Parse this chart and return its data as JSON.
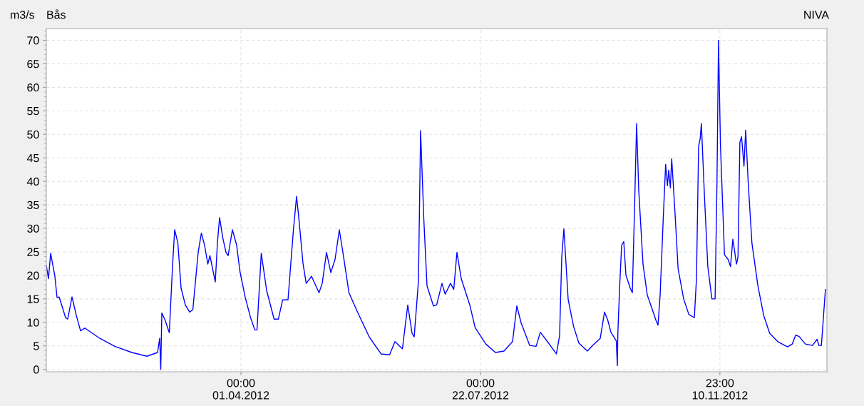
{
  "chart_data": {
    "type": "line",
    "title": "Bås",
    "ylabel": "m3/s",
    "annotations": [
      "NIVA"
    ],
    "x": [
      "2012-01-01",
      "2012-01-02",
      "2012-01-03",
      "2012-01-05",
      "2012-01-06",
      "2012-01-07",
      "2012-01-10",
      "2012-01-11",
      "2012-01-13",
      "2012-01-15",
      "2012-01-17",
      "2012-01-19",
      "2012-01-26",
      "2012-02-02",
      "2012-02-10",
      "2012-02-17",
      "2012-02-22",
      "2012-02-23T00:00",
      "2012-02-23T12:00",
      "2012-02-24T00:00",
      "2012-02-25T12:00",
      "2012-02-27T12:00",
      "2012-02-29",
      "2012-03-01",
      "2012-03-02T12:00",
      "2012-03-04",
      "2012-03-06",
      "2012-03-08",
      "2012-03-09T12:00",
      "2012-03-12",
      "2012-03-13T12:00",
      "2012-03-15",
      "2012-03-16T12:00",
      "2012-03-17T12:00",
      "2012-03-20",
      "2012-03-21",
      "2012-03-22",
      "2012-03-23T12:00",
      "2012-03-25",
      "2012-03-26",
      "2012-03-28",
      "2012-03-30",
      "2012-03-31T12:00",
      "2012-04-03",
      "2012-04-05T12:00",
      "2012-04-07T12:00",
      "2012-04-08T12:00",
      "2012-04-10T12:00",
      "2012-04-13",
      "2012-04-16T12:00",
      "2012-04-18T12:00",
      "2012-04-20T12:00",
      "2012-04-23",
      "2012-04-25T12:00",
      "2012-04-27",
      "2012-04-28",
      "2012-04-30",
      "2012-05-01T12:00",
      "2012-05-04",
      "2012-05-07T12:00",
      "2012-05-09",
      "2012-05-11",
      "2012-05-13",
      "2012-05-15",
      "2012-05-17",
      "2012-05-19",
      "2012-05-21T12:00",
      "2012-05-25T12:00",
      "2012-05-31",
      "2012-06-05T12:00",
      "2012-06-09T12:00",
      "2012-06-12",
      "2012-06-15T12:00",
      "2012-06-18",
      "2012-06-20",
      "2012-06-21",
      "2012-06-23",
      "2012-06-24",
      "2012-06-25T12:00",
      "2012-06-27",
      "2012-06-30",
      "2012-07-01T12:00",
      "2012-07-04",
      "2012-07-05T12:00",
      "2012-07-08",
      "2012-07-09T12:00",
      "2012-07-11",
      "2012-07-13",
      "2012-07-17",
      "2012-07-19T12:00",
      "2012-07-24T12:00",
      "2012-07-29",
      "2012-08-02",
      "2012-08-06",
      "2012-08-08",
      "2012-08-10",
      "2012-08-14",
      "2012-08-17",
      "2012-08-19",
      "2012-08-22",
      "2012-08-26T12:00",
      "2012-08-28",
      "2012-08-29",
      "2012-08-30",
      "2012-09-01",
      "2012-09-03T12:00",
      "2012-09-06",
      "2012-09-10",
      "2012-09-12T12:00",
      "2012-09-16",
      "2012-09-18",
      "2012-09-19T12:00",
      "2012-09-21",
      "2012-09-23T12:00",
      "2012-09-24T00:00",
      "2012-09-24T06:00",
      "2012-09-25",
      "2012-09-26",
      "2012-09-27",
      "2012-09-28",
      "2012-09-30",
      "2012-10-01",
      "2012-10-02",
      "2012-10-03",
      "2012-10-04",
      "2012-10-06",
      "2012-10-08",
      "2012-10-10",
      "2012-10-12",
      "2012-10-13",
      "2012-10-14",
      "2012-10-15T12:00",
      "2012-10-16T14:00",
      "2012-10-17T10:00",
      "2012-10-18T00:00",
      "2012-10-18T19:00",
      "2012-10-19T10:00",
      "2012-10-21",
      "2012-10-22T10:00",
      "2012-10-25",
      "2012-10-27T10:00",
      "2012-10-30",
      "2012-10-31",
      "2012-11-01T00:00",
      "2012-11-01T17:00",
      "2012-11-02T07:00",
      "2012-11-03T17:00",
      "2012-11-05T07:00",
      "2012-11-07T05:00",
      "2012-11-08T17:00",
      "2012-11-09T14:00",
      "2012-11-10T07:00",
      "2012-11-11T05:00",
      "2012-11-13T02:00",
      "2012-11-14T19:00",
      "2012-11-15T22:00",
      "2012-11-17T00:00",
      "2012-11-18T17:00",
      "2012-11-19T10:00",
      "2012-11-20T07:00",
      "2012-11-21T02:00",
      "2012-11-22T05:00",
      "2012-11-23T00:00",
      "2012-11-24T05:00",
      "2012-11-25T22:00",
      "2012-11-28T17:00",
      "2012-12-01T10:00",
      "2012-12-04T05:00",
      "2012-12-08",
      "2012-12-12T14:00",
      "2012-12-14T19:00",
      "2012-12-16T10:00",
      "2012-12-18",
      "2012-12-20T22:00",
      "2012-12-24T05:00",
      "2012-12-26T10:00",
      "2012-12-27T05:00",
      "2012-12-28T10:00",
      "2012-12-30T07:00"
    ],
    "series": [
      {
        "color": "#0000ff",
        "values": [
          22.1,
          19.3,
          24.7,
          19.8,
          15.3,
          15.4,
          11.0,
          10.7,
          15.4,
          11.5,
          8.2,
          8.8,
          6.6,
          4.9,
          3.6,
          2.8,
          3.6,
          6.6,
          0,
          12.0,
          10.5,
          7.8,
          21.9,
          29.7,
          26.9,
          17.3,
          13.7,
          12.2,
          12.7,
          24.9,
          29.0,
          26.4,
          22.4,
          24.2,
          18.6,
          26.9,
          32.3,
          28.0,
          24.9,
          24.2,
          29.7,
          26.4,
          20.9,
          15.3,
          11.0,
          8.4,
          8.4,
          24.7,
          16.8,
          10.7,
          10.7,
          14.8,
          14.8,
          29.5,
          36.8,
          32.5,
          22.6,
          18.3,
          19.8,
          16.3,
          18.3,
          24.9,
          20.6,
          23.4,
          29.7,
          23.9,
          16.3,
          12.2,
          6.9,
          3.3,
          3.1,
          5.9,
          4.4,
          13.7,
          7.7,
          6.9,
          18.8,
          50.8,
          32.0,
          17.8,
          13.5,
          13.7,
          18.3,
          16.0,
          18.3,
          17.0,
          24.9,
          19.3,
          13.7,
          8.9,
          5.4,
          3.6,
          3.9,
          5.9,
          13.5,
          9.9,
          5.1,
          4.9,
          7.9,
          6.1,
          3.3,
          7.2,
          23.9,
          29.9,
          14.9,
          9.2,
          5.6,
          3.9,
          5.1,
          6.6,
          12.2,
          10.5,
          7.9,
          6.1,
          0.8,
          7.9,
          16.8,
          26.4,
          27.2,
          20.1,
          17.3,
          16.3,
          33.5,
          52.3,
          38.1,
          22.4,
          15.8,
          13.2,
          10.5,
          9.4,
          15.8,
          32.5,
          43.6,
          39.1,
          42.4,
          38.6,
          44.8,
          33.0,
          21.4,
          15.0,
          11.7,
          11.0,
          19.3,
          47.5,
          49.0,
          52.3,
          37.1,
          21.9,
          15.0,
          15.0,
          39.6,
          70.0,
          47.8,
          24.4,
          23.4,
          21.9,
          27.7,
          22.4,
          23.9,
          48.3,
          49.5,
          43.2,
          50.9,
          39.6,
          26.9,
          17.8,
          11.5,
          7.7,
          5.9,
          4.8,
          5.4,
          7.3,
          7.0,
          5.4,
          5.1,
          6.4,
          5.1,
          5.1,
          17.0
        ]
      }
    ],
    "xlim": [
      "2012-01-01",
      "2012-12-31"
    ],
    "xticks": [
      {
        "value": "2012-04-01T00:00",
        "label": "00:00\n01.04.2012"
      },
      {
        "value": "2012-07-22T00:00",
        "label": "00:00\n22.07.2012"
      },
      {
        "value": "2012-11-10T23:00",
        "label": "23:00\n10.11.2012"
      }
    ],
    "ylim": [
      -0.5,
      72.5
    ],
    "yticks": [
      0,
      5,
      10,
      15,
      20,
      25,
      30,
      35,
      40,
      45,
      50,
      55,
      60,
      65,
      70
    ],
    "grid": true,
    "legend": false,
    "marker": "none",
    "line_style": "solid"
  }
}
